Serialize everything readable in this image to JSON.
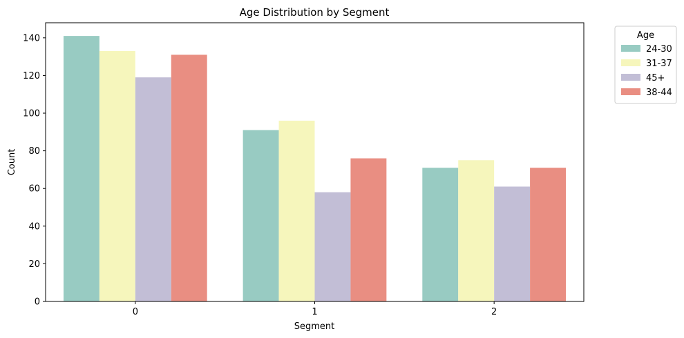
{
  "chart_data": {
    "type": "bar",
    "title": "Age Distribution by Segment",
    "xlabel": "Segment",
    "ylabel": "Count",
    "categories": [
      "0",
      "1",
      "2"
    ],
    "series": [
      {
        "name": "24-30",
        "values": [
          141,
          91,
          71
        ],
        "color": "#98cbc2"
      },
      {
        "name": "31-37",
        "values": [
          133,
          96,
          75
        ],
        "color": "#f6f6bc"
      },
      {
        "name": "45+",
        "values": [
          119,
          58,
          61
        ],
        "color": "#c2bed6"
      },
      {
        "name": "38-44",
        "values": [
          131,
          76,
          71
        ],
        "color": "#e98e82"
      }
    ],
    "ylim": [
      0,
      148
    ],
    "yticks": [
      "0",
      "20",
      "40",
      "60",
      "80",
      "100",
      "120",
      "140"
    ],
    "grid": false,
    "legend": {
      "title": "Age",
      "placement": "outside-top-right"
    }
  }
}
